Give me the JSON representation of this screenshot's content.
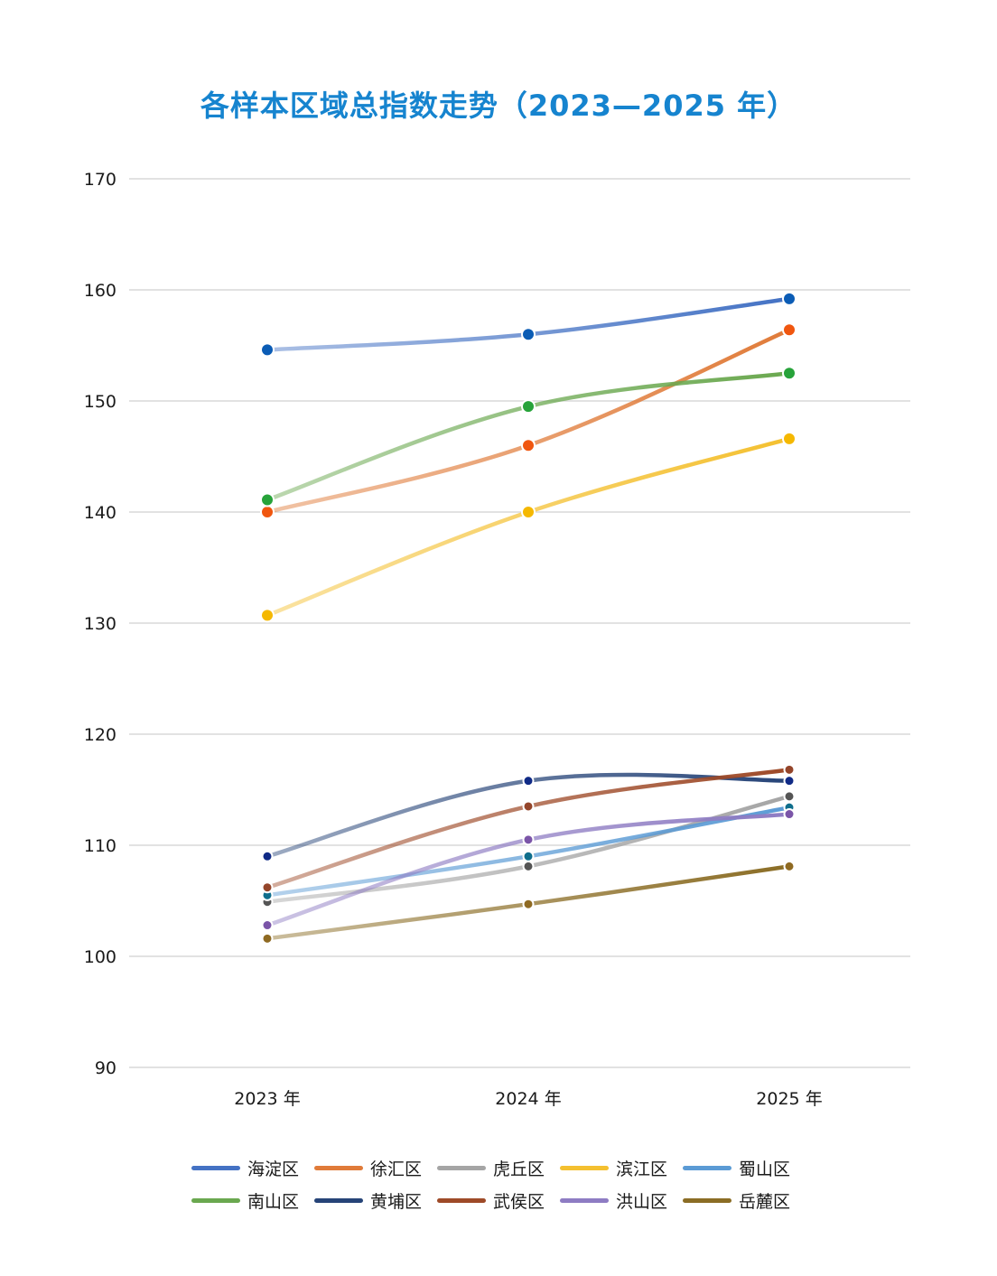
{
  "chart_data": {
    "type": "line",
    "title": "各样本区域总指数走势（2023—2025 年）",
    "x": [
      "2023 年",
      "2024 年",
      "2025 年"
    ],
    "ylim": [
      90,
      170
    ],
    "yticks": [
      90,
      100,
      110,
      120,
      130,
      140,
      150,
      160,
      170
    ],
    "grid": true,
    "legend_position": "bottom",
    "series": [
      {
        "name": "海淀区",
        "values": [
          154.6,
          156.0,
          159.2
        ],
        "color": "#4472c4",
        "marker": "#0b5cb5"
      },
      {
        "name": "徐汇区",
        "values": [
          140.0,
          146.0,
          156.4
        ],
        "color": "#e07b39",
        "marker": "#f0560f"
      },
      {
        "name": "虎丘区",
        "values": [
          104.9,
          108.1,
          114.4
        ],
        "color": "#a5a5a5",
        "marker": "#555555"
      },
      {
        "name": "滨江区",
        "values": [
          130.7,
          140.0,
          146.6
        ],
        "color": "#f4c030",
        "marker": "#f5b800"
      },
      {
        "name": "蜀山区",
        "values": [
          105.5,
          109.0,
          113.4
        ],
        "color": "#5b9bd5",
        "marker": "#0f6e8c"
      },
      {
        "name": "南山区",
        "values": [
          141.1,
          149.5,
          152.5
        ],
        "color": "#6aa84f",
        "marker": "#27a33a"
      },
      {
        "name": "黄埔区",
        "values": [
          109.0,
          115.8,
          115.8
        ],
        "color": "#264478",
        "marker": "#102a86"
      },
      {
        "name": "武侯区",
        "values": [
          106.2,
          113.5,
          116.8
        ],
        "color": "#9e4a28",
        "marker": "#94452a"
      },
      {
        "name": "洪山区",
        "values": [
          102.8,
          110.5,
          112.8
        ],
        "color": "#8e7cc3",
        "marker": "#7b55a8"
      },
      {
        "name": "岳麓区",
        "values": [
          101.6,
          104.7,
          108.1
        ],
        "color": "#8b6d25",
        "marker": "#8f6a22"
      }
    ]
  }
}
